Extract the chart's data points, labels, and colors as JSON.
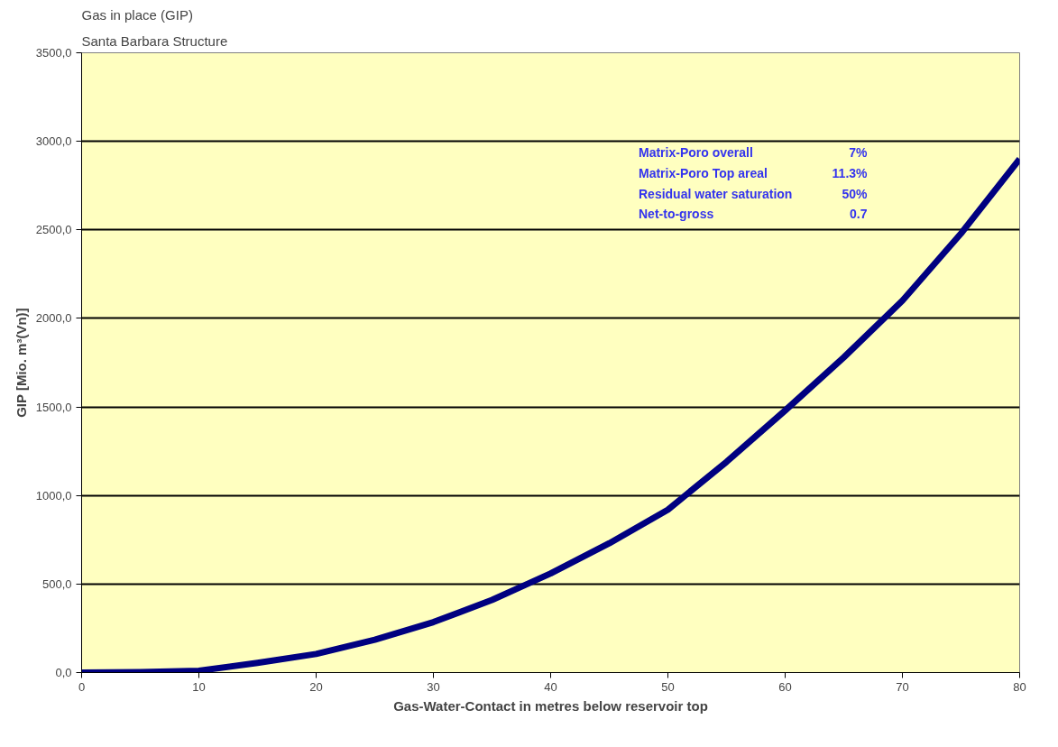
{
  "chart_data": {
    "type": "line",
    "title": "Gas in place (GIP)",
    "subtitle": "Santa Barbara Structure",
    "xlabel": "Gas-Water-Contact in metres below reservoir top",
    "ylabel": "GIP [Mio. m³(Vn)]",
    "x": [
      0,
      5,
      10,
      15,
      20,
      25,
      30,
      35,
      38,
      40,
      45,
      50,
      55,
      60,
      65,
      70,
      75,
      80
    ],
    "series": [
      {
        "color": "#000080",
        "values": [
          0,
          3,
          10,
          55,
          105,
          185,
          285,
          410,
          500,
          560,
          730,
          920,
          1190,
          1480,
          1780,
          2100,
          2480,
          2900
        ]
      }
    ],
    "xlim": [
      0,
      80
    ],
    "xticks": [
      0,
      10,
      20,
      30,
      40,
      50,
      60,
      70,
      80
    ],
    "ylim": [
      0,
      3500
    ],
    "yticks": [
      {
        "value": 0,
        "label": "0,0"
      },
      {
        "value": 500,
        "label": "500,0"
      },
      {
        "value": 1000,
        "label": "1000,0"
      },
      {
        "value": 1500,
        "label": "1500,0"
      },
      {
        "value": 2000,
        "label": "2000,0"
      },
      {
        "value": 2500,
        "label": "2500,0"
      },
      {
        "value": 3000,
        "label": "3000,0"
      },
      {
        "value": 3500,
        "label": "3500,0"
      }
    ],
    "grid": "y",
    "marker": "none",
    "line_style": "solid",
    "annotations": [
      "Matrix-Poro overall",
      "7%",
      "Matrix-Poro Top areal",
      "11.3%",
      "Residual water saturation",
      "50%",
      "Net-to-gross",
      "0.7"
    ]
  }
}
